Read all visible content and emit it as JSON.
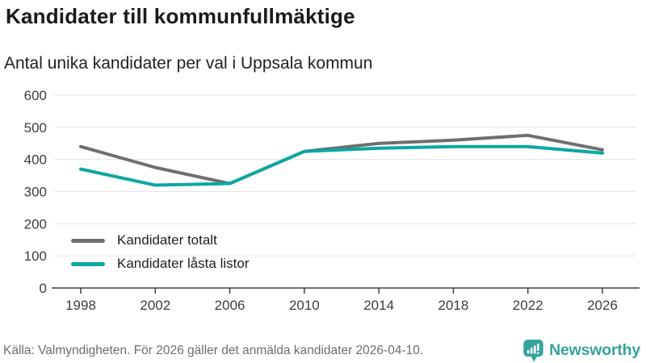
{
  "header": {
    "title": "Kandidater till kommunfullmäktige",
    "subtitle": "Antal unika kandidater per val i Uppsala kommun"
  },
  "chart_data": {
    "type": "line",
    "x": [
      1998,
      2002,
      2006,
      2010,
      2014,
      2018,
      2022,
      2026
    ],
    "series": [
      {
        "name": "Kandidater totalt",
        "color": "#6f6f6f",
        "values": [
          440,
          375,
          325,
          425,
          450,
          460,
          475,
          430
        ]
      },
      {
        "name": "Kandidater låsta listor",
        "color": "#0ba8a0",
        "values": [
          370,
          320,
          325,
          425,
          435,
          440,
          440,
          420
        ]
      }
    ],
    "title": "Kandidater till kommunfullmäktige",
    "subtitle": "Antal unika kandidater per val i Uppsala kommun",
    "xlabel": "",
    "ylabel": "",
    "ylim": [
      0,
      600
    ],
    "yticks": [
      0,
      100,
      200,
      300,
      400,
      500,
      600
    ],
    "grid": true,
    "gridline_color": "#e3e3e3",
    "axis_color": "#3d3d3d",
    "legend_position": "inside bottom-left"
  },
  "footer": {
    "source": "Källa: Valmyndigheten. För 2026 gäller det anmälda kandidater 2026-04-10.",
    "brand": "Newsworthy",
    "brand_color": "#35a39b"
  }
}
